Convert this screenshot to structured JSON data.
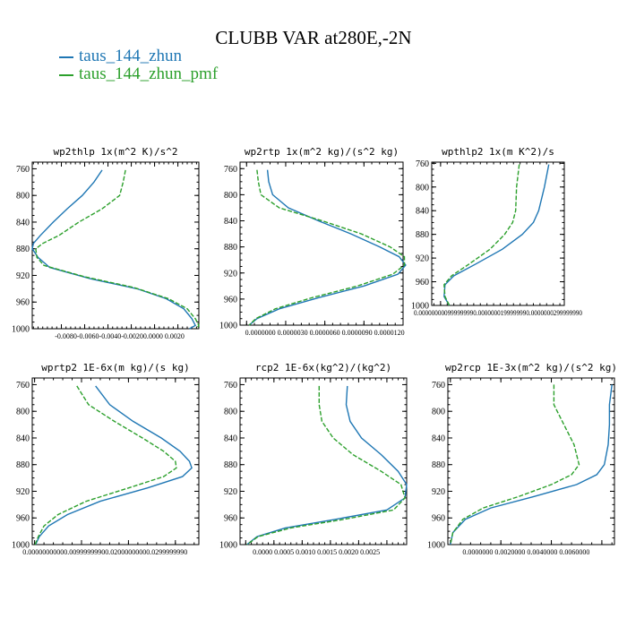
{
  "title": "CLUBB VAR at280E,-2N",
  "legend": [
    {
      "label": "taus_144_zhun",
      "color": "#1f77b4"
    },
    {
      "label": "taus_144_zhun_pmf",
      "color": "#2ca02c"
    }
  ],
  "chart_data": [
    {
      "type": "line",
      "title": "wp2thlp   1x(m^2 K)/s^2",
      "xlim": [
        -0.0105,
        0.0038
      ],
      "ylim": [
        1000,
        750
      ],
      "y_ticks": [
        760,
        800,
        840,
        880,
        920,
        960,
        1000
      ],
      "x_ticks": [
        -0.008,
        -0.006,
        -0.004,
        -0.002,
        0.0,
        0.002
      ],
      "x_tick_labels": [
        "-0.0080",
        "-0.0060",
        "-0.0040",
        "-0.0020",
        "0.0000",
        "0.0020"
      ],
      "x_tick_text": "-0.0080-0.0060-0.0040-0.00200.0000 0.0020",
      "series": [
        {
          "color": "#1f77b4",
          "dash": false,
          "x": [
            -0.0045,
            -0.0052,
            -0.0062,
            -0.0075,
            -0.0087,
            -0.0098,
            -0.0104,
            -0.0105,
            -0.01,
            -0.009,
            -0.0055,
            -0.0015,
            0.001,
            0.0025,
            0.0032,
            0.0035,
            0.003
          ],
          "y": [
            762,
            780,
            800,
            820,
            840,
            860,
            872,
            880,
            893,
            908,
            925,
            940,
            955,
            970,
            985,
            995,
            1000
          ]
        },
        {
          "color": "#2ca02c",
          "dash": true,
          "x": [
            -0.0025,
            -0.0027,
            -0.003,
            -0.0045,
            -0.0065,
            -0.0082,
            -0.0096,
            -0.0102,
            -0.0101,
            -0.0095,
            -0.006,
            -0.0018,
            0.0012,
            0.0028,
            0.0035,
            0.0038,
            0.0036
          ],
          "y": [
            762,
            780,
            800,
            820,
            840,
            860,
            872,
            880,
            893,
            905,
            922,
            938,
            955,
            970,
            985,
            995,
            1000
          ]
        }
      ]
    },
    {
      "type": "line",
      "title": "wp2rtp   1x(m^2 kg)/(s^2 kg)",
      "xlim": [
        -5e-07,
        1.2e-05
      ],
      "ylim": [
        1000,
        750
      ],
      "y_ticks": [
        760,
        800,
        840,
        880,
        920,
        960,
        1000
      ],
      "x_ticks": [
        0.0,
        3e-06,
        6e-06,
        9e-06,
        1.2e-05
      ],
      "x_tick_labels": [
        "0.0000000",
        "0.0000030",
        "0.0000060",
        "0.0000090",
        "0.0000120"
      ],
      "x_tick_text": "0.0000000  0.0000030  0.0000060  0.0000090  0.0000120",
      "series": [
        {
          "color": "#1f77b4",
          "dash": false,
          "x": [
            1.6e-06,
            1.7e-06,
            2e-06,
            3.2e-06,
            5.5e-06,
            8e-06,
            1.02e-05,
            1.17e-05,
            1.22e-05,
            1.16e-05,
            9e-06,
            5.5e-06,
            2.5e-06,
            8e-07,
            2e-07
          ],
          "y": [
            762,
            780,
            800,
            820,
            840,
            860,
            880,
            895,
            908,
            922,
            940,
            958,
            975,
            990,
            1000
          ]
        },
        {
          "color": "#2ca02c",
          "dash": true,
          "x": [
            8e-07,
            9e-07,
            1.1e-06,
            2.5e-06,
            5.8e-06,
            8.8e-06,
            1.1e-05,
            1.21e-05,
            1.21e-05,
            1.12e-05,
            8.5e-06,
            5e-06,
            2.2e-06,
            7e-07,
            2e-07
          ],
          "y": [
            762,
            780,
            800,
            820,
            840,
            860,
            880,
            895,
            908,
            922,
            940,
            958,
            975,
            990,
            1000
          ]
        }
      ]
    },
    {
      "type": "line",
      "title": "wpthlp2   1x(m K^2)/s",
      "xlim": [
        -0.002,
        0.028
      ],
      "ylim": [
        1000,
        758
      ],
      "y_ticks": [
        760,
        800,
        840,
        880,
        920,
        960,
        1000
      ],
      "x_ticks": [
        0.0
      ],
      "x_tick_labels": [
        "0.0000000999999999999999999999999"
      ],
      "x_tick_text": "0.000000000999999990.0000000199999990.0000000299999990",
      "series": [
        {
          "color": "#1f77b4",
          "dash": false,
          "x": [
            0.0245,
            0.0235,
            0.0222,
            0.021,
            0.0185,
            0.014,
            0.008,
            0.003,
            0.001,
            0.0008,
            0.002
          ],
          "y": [
            762,
            800,
            840,
            860,
            880,
            905,
            930,
            950,
            965,
            985,
            1000
          ]
        },
        {
          "color": "#2ca02c",
          "dash": true,
          "x": [
            0.0178,
            0.0172,
            0.017,
            0.0163,
            0.0145,
            0.0112,
            0.0065,
            0.0025,
            0.0008,
            0.001,
            0.002
          ],
          "y": [
            762,
            800,
            840,
            860,
            880,
            905,
            930,
            950,
            965,
            985,
            1000
          ]
        }
      ]
    },
    {
      "type": "line",
      "title": "wprtp2   1E-6x(m kg)/(s kg)",
      "xlim": [
        -0.0005,
        0.035
      ],
      "ylim": [
        1000,
        750
      ],
      "y_ticks": [
        760,
        800,
        840,
        880,
        920,
        960,
        1000
      ],
      "x_ticks": [
        0.0,
        0.01,
        0.02,
        0.03
      ],
      "x_tick_labels": [
        "0.0000000000",
        "0.0099999990",
        "0.0200000000",
        "0.0299999990"
      ],
      "x_tick_text": "0.00000000000.00999999900.02000000000.0299999990",
      "series": [
        {
          "color": "#1f77b4",
          "dash": false,
          "x": [
            0.013,
            0.016,
            0.021,
            0.027,
            0.031,
            0.033,
            0.0335,
            0.0315,
            0.024,
            0.014,
            0.007,
            0.003,
            0.001,
            0.0002
          ],
          "y": [
            762,
            790,
            815,
            840,
            860,
            875,
            885,
            898,
            915,
            935,
            955,
            972,
            988,
            1000
          ]
        },
        {
          "color": "#2ca02c",
          "dash": true,
          "x": [
            0.009,
            0.0115,
            0.017,
            0.023,
            0.0275,
            0.03,
            0.0302,
            0.0275,
            0.02,
            0.011,
            0.005,
            0.002,
            0.0008,
            0.0001
          ],
          "y": [
            762,
            790,
            815,
            840,
            860,
            875,
            885,
            898,
            915,
            935,
            955,
            972,
            988,
            1000
          ]
        }
      ]
    },
    {
      "type": "line",
      "title": "rcp2   1E-6x(kg^2)/(kg^2)",
      "xlim": [
        -0.0001,
        0.00285
      ],
      "ylim": [
        1000,
        750
      ],
      "y_ticks": [
        760,
        800,
        840,
        880,
        920,
        960,
        1000
      ],
      "x_ticks": [
        0.0,
        0.0005,
        0.001,
        0.0015,
        0.002,
        0.0025
      ],
      "x_tick_labels": [
        "0.0000",
        "0.0005",
        "0.0010",
        "0.0015",
        "0.0020",
        "0.0025"
      ],
      "x_tick_text": "0.0000  0.0005  0.0010  0.0015  0.0020  0.0025",
      "series": [
        {
          "color": "#1f77b4",
          "dash": false,
          "x": [
            0.0018,
            0.00178,
            0.00185,
            0.00205,
            0.0024,
            0.0027,
            0.00285,
            0.00282,
            0.0025,
            0.0016,
            0.0007,
            0.0002,
            2e-05
          ],
          "y": [
            762,
            790,
            815,
            840,
            865,
            890,
            910,
            930,
            948,
            962,
            975,
            988,
            1000
          ]
        },
        {
          "color": "#2ca02c",
          "dash": true,
          "x": [
            0.0013,
            0.0013,
            0.00135,
            0.00155,
            0.0019,
            0.0024,
            0.00275,
            0.00282,
            0.00262,
            0.00175,
            0.0008,
            0.00022,
            2e-05
          ],
          "y": [
            762,
            790,
            815,
            840,
            865,
            890,
            910,
            930,
            948,
            962,
            975,
            988,
            1000
          ]
        }
      ]
    },
    {
      "type": "line",
      "title": "wp2rcp   1E-3x(m^2 kg)/(s^2 kg)",
      "xlim": [
        -0.0001,
        0.0065
      ],
      "ylim": [
        1000,
        750
      ],
      "y_ticks": [
        760,
        800,
        840,
        880,
        920,
        960,
        1000
      ],
      "x_ticks": [
        0.0,
        0.002,
        0.004,
        0.006
      ],
      "x_tick_labels": [
        "0.0000000",
        "0.0020000",
        "0.0040000",
        "0.0060000"
      ],
      "x_tick_text": "0.0000000     0.0020000     0.0040000     0.0060000",
      "series": [
        {
          "color": "#1f77b4",
          "dash": false,
          "x": [
            0.0064,
            0.0063,
            0.0063,
            0.00625,
            0.0061,
            0.0058,
            0.005,
            0.0033,
            0.0016,
            0.0006,
            0.0001,
            0.0
          ],
          "y": [
            760,
            790,
            820,
            850,
            880,
            895,
            910,
            928,
            945,
            962,
            982,
            1000
          ]
        },
        {
          "color": "#2ca02c",
          "dash": true,
          "x": [
            0.0041,
            0.0041,
            0.0045,
            0.0049,
            0.0051,
            0.0048,
            0.004,
            0.0027,
            0.0013,
            0.0005,
            0.0001,
            0.0
          ],
          "y": [
            760,
            790,
            820,
            850,
            880,
            895,
            910,
            928,
            945,
            962,
            982,
            1000
          ]
        }
      ]
    }
  ]
}
